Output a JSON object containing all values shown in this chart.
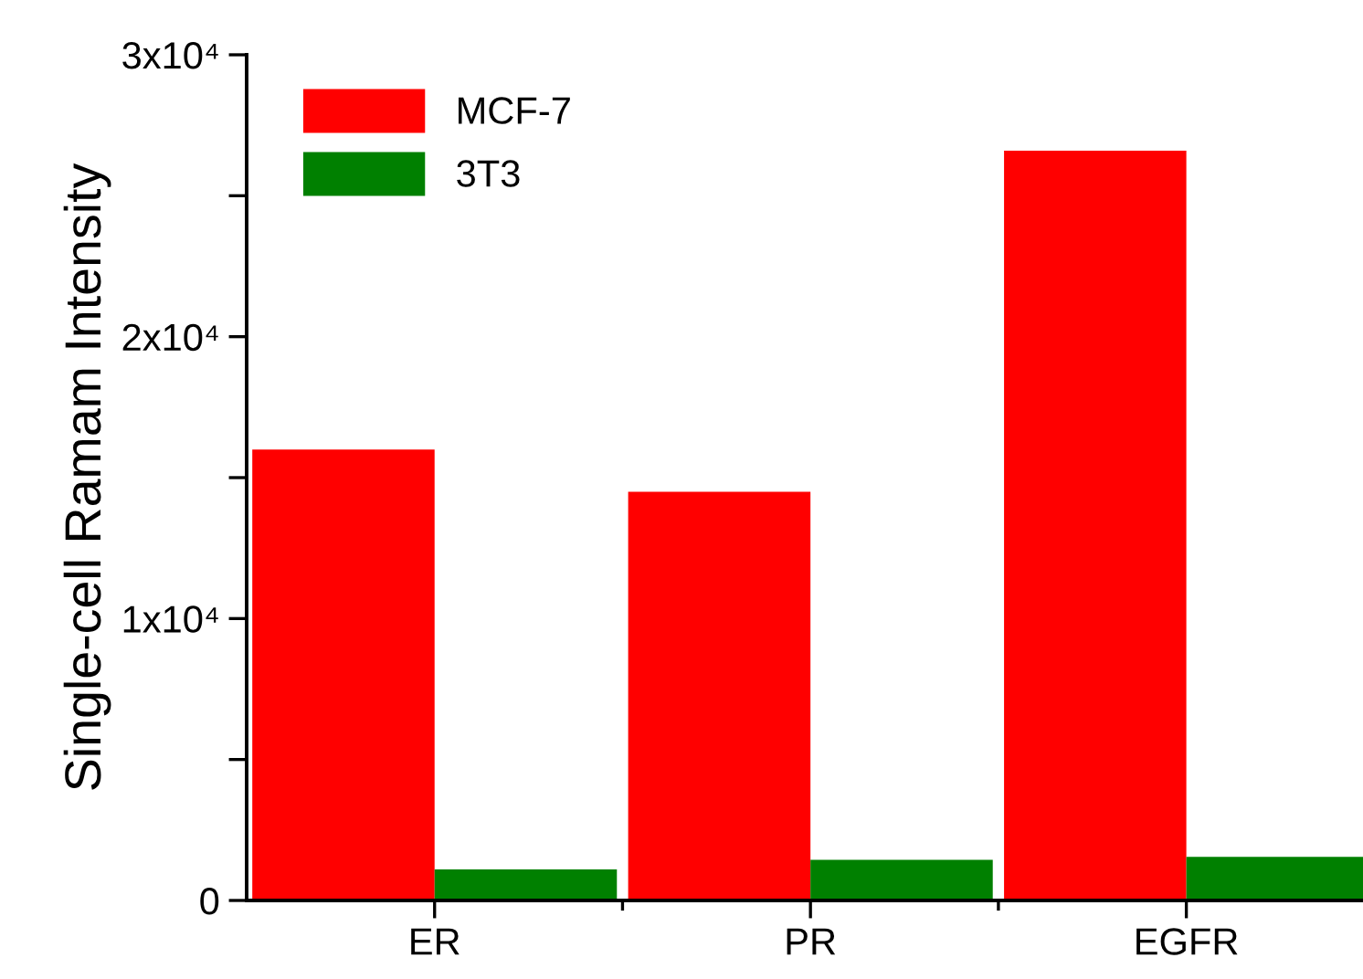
{
  "chart_data": {
    "type": "bar",
    "ylabel": "Single-cell Ramam Intensity",
    "categories": [
      "ER",
      "PR",
      "EGFR"
    ],
    "series": [
      {
        "name": "MCF-7",
        "color": "#ff0000",
        "values": [
          16000,
          14500,
          26600
        ]
      },
      {
        "name": "3T3",
        "color": "#008000",
        "values": [
          1100,
          1440,
          1550
        ]
      }
    ],
    "ylim": [
      0,
      30000
    ],
    "yticks": [
      {
        "value": 0,
        "label": "0"
      },
      {
        "value": 5000,
        "label": null
      },
      {
        "value": 10000,
        "label": "1x10⁴"
      },
      {
        "value": 15000,
        "label": null
      },
      {
        "value": 20000,
        "label": "2x10⁴"
      },
      {
        "value": 25000,
        "label": null
      },
      {
        "value": 30000,
        "label": "3x10⁴"
      }
    ],
    "grid": false,
    "legend": "top left"
  }
}
